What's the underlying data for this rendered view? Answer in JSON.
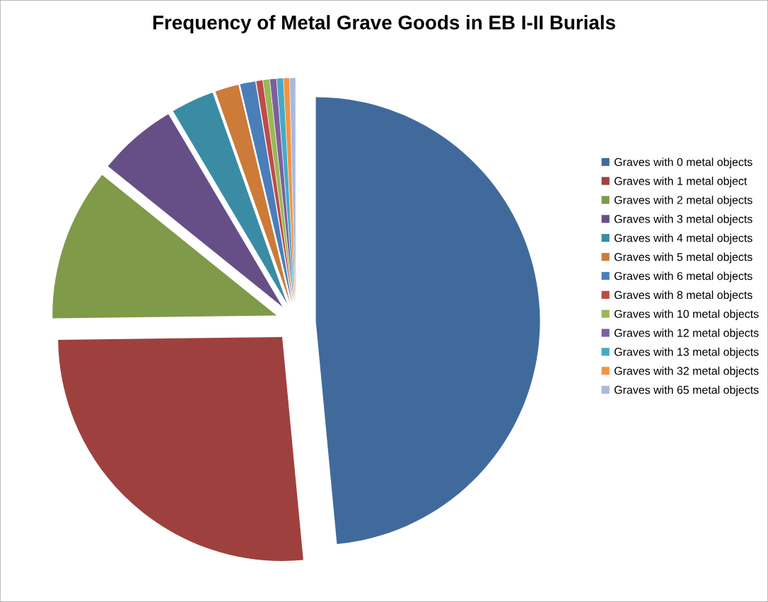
{
  "chart_data": {
    "type": "pie",
    "title": "Frequency of Metal Grave Goods in EB I-II Burials",
    "categories": [
      "Graves with 0 metal objects",
      "Graves with 1 metal object",
      "Graves with 2 metal objects",
      "Graves with 3 metal objects",
      "Graves with 4 metal objects",
      "Graves with 5 metal objects",
      "Graves with 6 metal objects",
      "Graves with 8 metal objects",
      "Graves with 10 metal objects",
      "Graves with 12 metal objects",
      "Graves with 13 metal objects",
      "Graves with 32 metal objects",
      "Graves with 65 metal objects"
    ],
    "values": [
      48.5,
      26.3,
      11.0,
      5.7,
      3.1,
      1.7,
      1.1,
      0.45,
      0.45,
      0.45,
      0.45,
      0.4,
      0.4
    ],
    "colors": [
      "#416a9c",
      "#9e413e",
      "#7f9a48",
      "#664f87",
      "#3a8ca4",
      "#cc7b38",
      "#4a7ebb",
      "#be4b48",
      "#98b954",
      "#7d5fa0",
      "#46aac5",
      "#f69240",
      "#a7b9de"
    ],
    "legend": "right"
  }
}
